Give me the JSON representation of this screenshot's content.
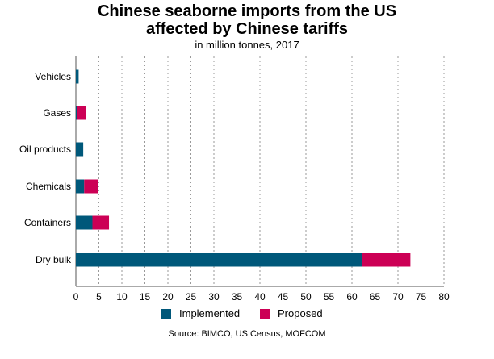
{
  "chart_data": {
    "type": "bar",
    "orientation": "horizontal",
    "stacked": true,
    "title_line1": "Chinese seaborne imports from the US",
    "title_line2": "affected by Chinese tariffs",
    "subtitle": "in million tonnes, 2017",
    "categories": [
      "Vehicles",
      "Gases",
      "Oil products",
      "Chemicals",
      "Containers",
      "Dry bulk"
    ],
    "series": [
      {
        "name": "Implemented",
        "color": "#00587a",
        "values": [
          0.6,
          0.3,
          1.6,
          1.8,
          3.6,
          62.2
        ]
      },
      {
        "name": "Proposed",
        "color": "#cc0055",
        "values": [
          0,
          1.9,
          0,
          3.0,
          3.6,
          10.5
        ]
      }
    ],
    "xlim": [
      0,
      80
    ],
    "xticks": [
      0,
      5,
      10,
      15,
      20,
      25,
      30,
      35,
      40,
      45,
      50,
      55,
      60,
      65,
      70,
      75,
      80
    ],
    "grid": "vertical dotted",
    "legend_position": "bottom",
    "source": "Source: BIMCO, US Census, MOFCOM"
  }
}
